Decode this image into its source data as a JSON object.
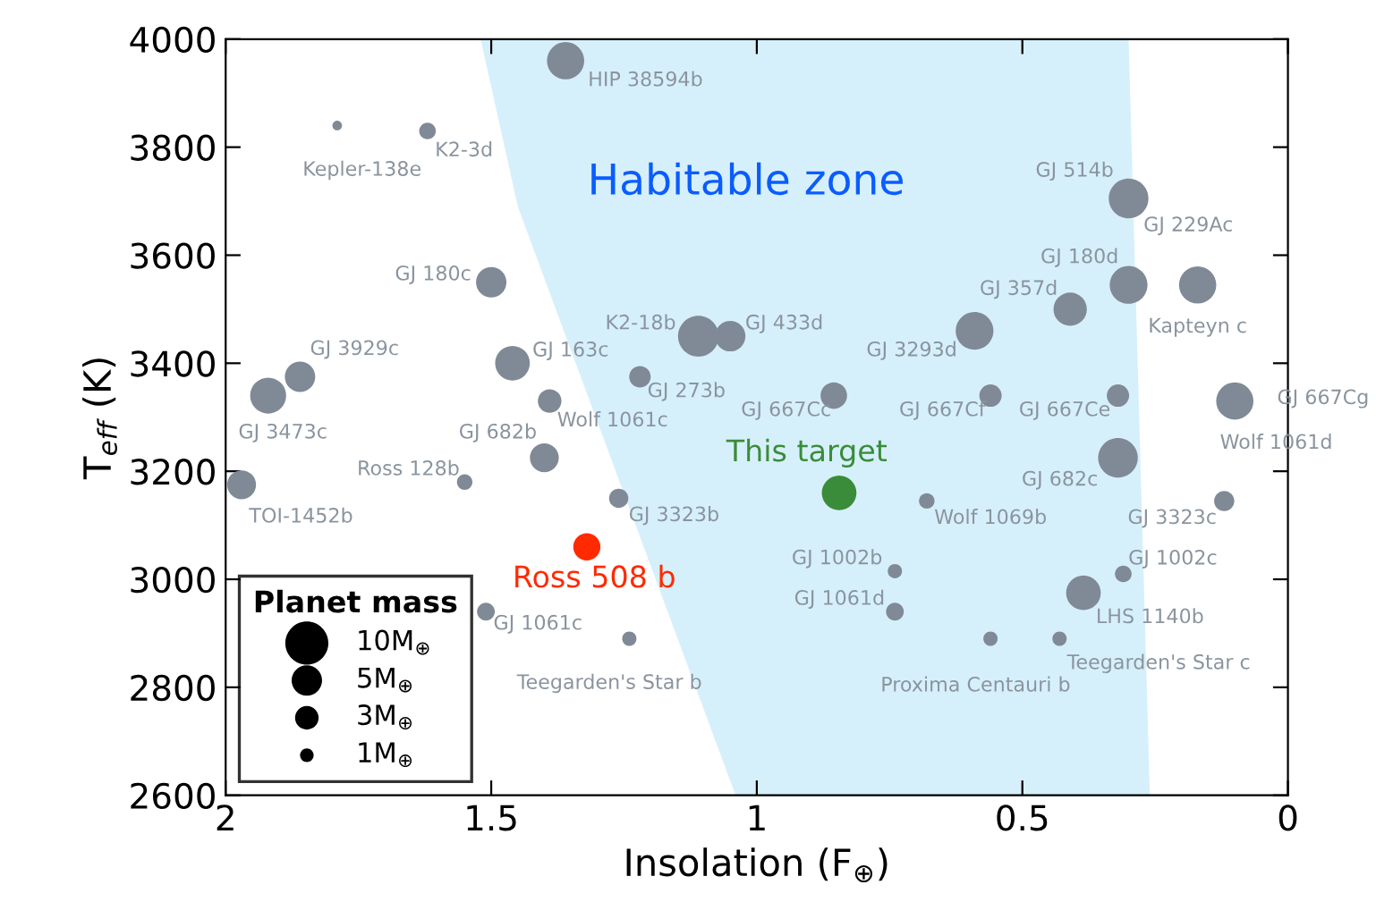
{
  "chart_data": {
    "type": "bubble",
    "xlabel": "Insolation (F$_{⊕}$)",
    "ylabel": "T$_{eff}$ (K)",
    "xlim": [
      2,
      0
    ],
    "xticks": [
      2,
      1.5,
      1,
      0.5,
      0
    ],
    "ylim": [
      2600,
      4000
    ],
    "yticks": [
      2600,
      2800,
      3000,
      3200,
      3400,
      3600,
      3800,
      4000
    ],
    "legend": "bottom left",
    "legend_title": "Planet mass",
    "size_legend": [
      {
        "value": 10,
        "label": "10M$_{⊕}$"
      },
      {
        "value": 5,
        "label": "5M$_{⊕}$"
      },
      {
        "value": 3,
        "label": "3M$_{⊕}$"
      },
      {
        "value": 1,
        "label": "1M$_{⊕}$"
      }
    ],
    "series": [
      {
        "type": "area",
        "color": "#d6f0fb",
        "x": [
          1.52,
          1.45,
          1.04,
          0.26,
          0.3
        ],
        "values": [
          4000,
          3690,
          2600,
          2600,
          4000
        ]
      },
      {
        "color": "#808a96",
        "x": [
          1.36,
          1.79,
          1.62,
          1.5,
          1.86,
          1.92,
          1.46,
          1.11,
          1.05,
          1.22,
          1.39,
          1.4,
          1.55,
          1.97,
          1.26,
          1.51,
          1.24,
          0.855,
          0.56,
          0.32,
          0.59,
          0.41,
          0.3,
          0.17,
          0.3,
          0.1,
          0.32,
          0.68,
          0.12,
          0.74,
          0.74,
          0.31,
          0.385,
          0.56,
          0.43
        ],
        "values": [
          3960,
          3840,
          3830,
          3550,
          3375,
          3340,
          3400,
          3450,
          3450,
          3375,
          3330,
          3225,
          3180,
          3175,
          3150,
          2940,
          2890,
          3340,
          3340,
          3340,
          3460,
          3500,
          3545,
          3545,
          3705,
          3330,
          3225,
          3145,
          3145,
          3015,
          2940,
          3010,
          2975,
          2890,
          2890
        ],
        "sizes": [
          7.5,
          0.5,
          1.5,
          5,
          5,
          7,
          6.5,
          9,
          5,
          2.5,
          3,
          4.5,
          1.3,
          4.5,
          2,
          1.7,
          1.1,
          3.8,
          2.7,
          2.7,
          7.7,
          6,
          7.7,
          7.5,
          8.5,
          7.5,
          8.5,
          1.3,
          2.2,
          1.1,
          1.7,
          1.5,
          6.5,
          1.1,
          1.1
        ]
      },
      {
        "name": "This target",
        "color": "#3a8c3a",
        "x": [
          0.845
        ],
        "values": [
          3160
        ],
        "sizes": [
          6.5
        ]
      },
      {
        "name": "Ross 508 b",
        "color": "#ff2a00",
        "x": [
          1.32
        ],
        "values": [
          3060
        ],
        "sizes": [
          4
        ]
      }
    ],
    "annotations": [
      "Habitable zone",
      {
        "text": "HIP 38594b",
        "x": 1.36,
        "y": 3960
      },
      {
        "text": "Kepler-138e",
        "x": 1.79,
        "y": 3840
      },
      {
        "text": "K2-3d",
        "x": 1.62,
        "y": 3830
      },
      {
        "text": "GJ 180c",
        "x": 1.5,
        "y": 3550
      },
      {
        "text": "GJ 3929c",
        "x": 1.86,
        "y": 3375
      },
      {
        "text": "GJ 3473c",
        "x": 1.92,
        "y": 3340
      },
      {
        "text": "GJ 163c",
        "x": 1.46,
        "y": 3400
      },
      {
        "text": "K2-18b",
        "x": 1.11,
        "y": 3450
      },
      {
        "text": "GJ 433d",
        "x": 1.05,
        "y": 3450
      },
      {
        "text": "GJ 273b",
        "x": 1.22,
        "y": 3375
      },
      {
        "text": "Wolf 1061c",
        "x": 1.39,
        "y": 3330
      },
      {
        "text": "GJ 682b",
        "x": 1.4,
        "y": 3225
      },
      {
        "text": "Ross 128b",
        "x": 1.55,
        "y": 3180
      },
      {
        "text": "TOI-1452b",
        "x": 1.97,
        "y": 3175
      },
      {
        "text": "GJ 3323b",
        "x": 1.26,
        "y": 3150
      },
      {
        "text": "GJ 1061c",
        "x": 1.51,
        "y": 2940
      },
      {
        "text": "Teegarden's Star b",
        "x": 1.24,
        "y": 2890
      },
      {
        "text": "GJ 667Cc",
        "x": 0.855,
        "y": 3340
      },
      {
        "text": "GJ 667Cf",
        "x": 0.56,
        "y": 3340
      },
      {
        "text": "GJ 667Ce",
        "x": 0.32,
        "y": 3340
      },
      {
        "text": "GJ 3293d",
        "x": 0.59,
        "y": 3460
      },
      {
        "text": "GJ 357d",
        "x": 0.41,
        "y": 3500
      },
      {
        "text": "GJ 180d",
        "x": 0.3,
        "y": 3545
      },
      {
        "text": "Kapteyn c",
        "x": 0.17,
        "y": 3545
      },
      {
        "text": "GJ 514b",
        "x": 0.3,
        "y": 3705
      },
      {
        "text": "GJ 229Ac",
        "x": 0.3,
        "y": 3705
      },
      {
        "text": "GJ 667Cg",
        "x": 0.1,
        "y": 3330
      },
      {
        "text": "Wolf 1061d",
        "x": 0.1,
        "y": 3330
      },
      {
        "text": "GJ 682c",
        "x": 0.32,
        "y": 3225
      },
      {
        "text": "Wolf 1069b",
        "x": 0.68,
        "y": 3145
      },
      {
        "text": "GJ 3323c",
        "x": 0.12,
        "y": 3145
      },
      {
        "text": "GJ 1002b",
        "x": 0.74,
        "y": 3015
      },
      {
        "text": "GJ 1061d",
        "x": 0.74,
        "y": 2940
      },
      {
        "text": "GJ 1002c",
        "x": 0.31,
        "y": 3010
      },
      {
        "text": "LHS 1140b",
        "x": 0.385,
        "y": 2975
      },
      {
        "text": "Proxima Centauri b",
        "x": 0.56,
        "y": 2890
      },
      {
        "text": "Teegarden's Star c",
        "x": 0.43,
        "y": 2890
      }
    ]
  }
}
